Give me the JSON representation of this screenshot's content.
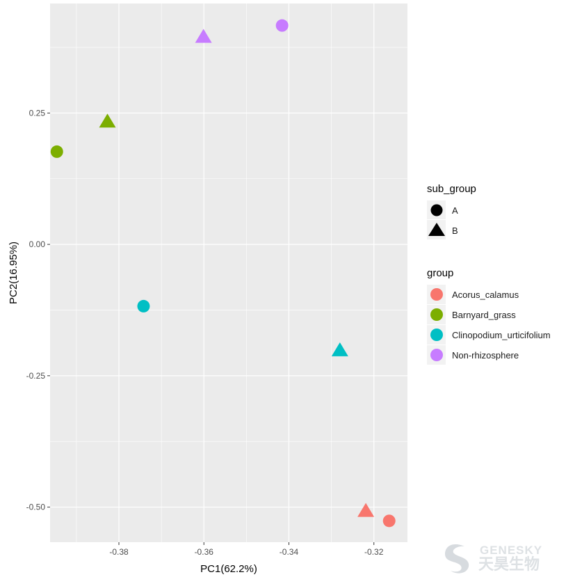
{
  "chart_data": {
    "type": "scatter",
    "xlabel": "PC1(62.2%)",
    "ylabel": "PC2(16.95%)",
    "xlim": [
      -0.3962,
      -0.3121
    ],
    "ylim": [
      -0.5668,
      0.4585
    ],
    "x_ticks": [
      -0.38,
      -0.36,
      -0.34,
      -0.32
    ],
    "x_tick_labels": [
      "-0.38",
      "-0.36",
      "-0.34",
      "-0.32"
    ],
    "y_ticks": [
      0.25,
      0.0,
      -0.25,
      -0.5
    ],
    "y_tick_labels": [
      "0.25",
      "0.00",
      "-0.25",
      "-0.50"
    ],
    "grid": true,
    "panel_background": "#ebebeb",
    "grid_color": "#ffffff",
    "legend_position": "right",
    "series": [
      {
        "name": "Acorus_calamus",
        "color": "#F8766D",
        "points": [
          {
            "x": -0.3164,
            "y": -0.5262,
            "sub_group": "A"
          },
          {
            "x": -0.3219,
            "y": -0.5067,
            "sub_group": "B"
          }
        ]
      },
      {
        "name": "Barnyard_grass",
        "color": "#7CAE00",
        "points": [
          {
            "x": -0.3946,
            "y": 0.1765,
            "sub_group": "A"
          },
          {
            "x": -0.3827,
            "y": 0.2343,
            "sub_group": "B"
          }
        ]
      },
      {
        "name": "Clinopodium_urticifolium",
        "color": "#00BFC4",
        "points": [
          {
            "x": -0.3742,
            "y": -0.1176,
            "sub_group": "A"
          },
          {
            "x": -0.328,
            "y": -0.201,
            "sub_group": "B"
          }
        ]
      },
      {
        "name": "Non-rhizosphere",
        "color": "#C77CFF",
        "points": [
          {
            "x": -0.3416,
            "y": 0.4166,
            "sub_group": "A"
          },
          {
            "x": -0.3601,
            "y": 0.3956,
            "sub_group": "B"
          }
        ]
      }
    ],
    "shape_legend": {
      "title": "sub_group",
      "items": [
        {
          "label": "A",
          "shape": "circle"
        },
        {
          "label": "B",
          "shape": "triangle"
        }
      ]
    },
    "color_legend": {
      "title": "group",
      "items": [
        {
          "label": "Acorus_calamus",
          "color": "#F8766D"
        },
        {
          "label": "Barnyard_grass",
          "color": "#7CAE00"
        },
        {
          "label": "Clinopodium_urticifolium",
          "color": "#00BFC4"
        },
        {
          "label": "Non-rhizosphere",
          "color": "#C77CFF"
        }
      ]
    }
  },
  "watermark": {
    "latin": "GENESKY",
    "chinese": "天昊生物"
  }
}
